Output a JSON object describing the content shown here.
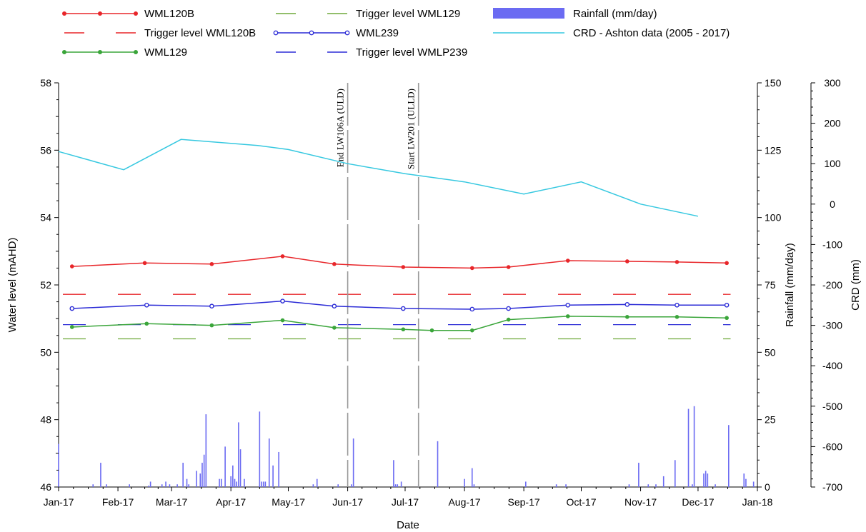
{
  "chart_data": {
    "type": "line",
    "x_axis": {
      "label": "Date",
      "tick_labels": [
        "Jan-17",
        "Feb-17",
        "Mar-17",
        "Apr-17",
        "May-17",
        "Jun-17",
        "Jul-17",
        "Aug-17",
        "Sep-17",
        "Oct-17",
        "Nov-17",
        "Dec-17",
        "Jan-18"
      ],
      "range": [
        "2017-01-01",
        "2018-01-01"
      ]
    },
    "y_axes": {
      "left": {
        "label": "Water level (mAHD)",
        "range": [
          46,
          58
        ],
        "ticks": [
          "46",
          "48",
          "50",
          "52",
          "54",
          "56",
          "58"
        ]
      },
      "right1": {
        "label": "Rainfall (mm/day)",
        "range": [
          0,
          150
        ],
        "ticks": [
          "0",
          "25",
          "50",
          "75",
          "100",
          "125",
          "150"
        ]
      },
      "right2": {
        "label": "CRD (mm)",
        "range": [
          -700,
          300
        ],
        "ticks": [
          "-700",
          "-600",
          "-500",
          "-400",
          "-300",
          "-200",
          "-100",
          "0",
          "100",
          "200",
          "300"
        ]
      }
    },
    "legend": {
      "placement": "top",
      "entries": [
        {
          "label": "WML120B",
          "color": "#e8262a",
          "style": "line-marker"
        },
        {
          "label": "Trigger level WML120B",
          "color": "#e8262a",
          "style": "dash"
        },
        {
          "label": "WML129",
          "color": "#3aa53a",
          "style": "line-marker"
        },
        {
          "label": "Trigger level WML129",
          "color": "#6ea83a",
          "style": "dash"
        },
        {
          "label": "WML239",
          "color": "#2b2bd6",
          "style": "line-marker-open"
        },
        {
          "label": "Trigger level WMLP239",
          "color": "#2b2bd6",
          "style": "dash"
        },
        {
          "label": "Rainfall (mm/day)",
          "color": "#6b6bf2",
          "style": "bar"
        },
        {
          "label": "CRD - Ashton data (2005 - 2017)",
          "color": "#36c8e0",
          "style": "line"
        }
      ]
    },
    "annotations": [
      {
        "label": "End LW106A (ULD)",
        "date": "2017-06-01",
        "style": "vertical-dashed"
      },
      {
        "label": "Start LW201 (ULLD)",
        "date": "2017-07-08",
        "style": "vertical-dashed"
      }
    ],
    "series": [
      {
        "name": "WML120B",
        "axis": "left",
        "color": "#e8262a",
        "marker": "filled-circle",
        "x": [
          "2017-01-08",
          "2017-02-15",
          "2017-03-22",
          "2017-04-28",
          "2017-05-25",
          "2017-06-30",
          "2017-08-05",
          "2017-08-24",
          "2017-09-24",
          "2017-10-25",
          "2017-11-20",
          "2017-12-16"
        ],
        "y": [
          52.55,
          52.65,
          52.62,
          52.85,
          52.62,
          52.53,
          52.5,
          52.53,
          52.72,
          52.7,
          52.68,
          52.65
        ]
      },
      {
        "name": "WML129",
        "axis": "left",
        "color": "#3aa53a",
        "marker": "filled-circle",
        "x": [
          "2017-01-08",
          "2017-02-16",
          "2017-03-22",
          "2017-04-28",
          "2017-05-25",
          "2017-06-30",
          "2017-07-15",
          "2017-08-05",
          "2017-08-24",
          "2017-09-24",
          "2017-10-25",
          "2017-11-20",
          "2017-12-16"
        ],
        "y": [
          50.75,
          50.85,
          50.8,
          50.95,
          50.73,
          50.68,
          50.65,
          50.65,
          50.97,
          51.07,
          51.05,
          51.05,
          51.02
        ]
      },
      {
        "name": "WML239",
        "axis": "left",
        "color": "#2b2bd6",
        "marker": "open-circle",
        "x": [
          "2017-01-08",
          "2017-02-16",
          "2017-03-22",
          "2017-04-28",
          "2017-05-25",
          "2017-06-30",
          "2017-08-05",
          "2017-08-24",
          "2017-09-24",
          "2017-10-25",
          "2017-11-20",
          "2017-12-16"
        ],
        "y": [
          51.3,
          51.4,
          51.37,
          51.52,
          51.37,
          51.3,
          51.28,
          51.3,
          51.4,
          51.42,
          51.4,
          51.4
        ]
      },
      {
        "name": "Trigger level WML120B",
        "axis": "left",
        "color": "#e8262a",
        "dashed": true,
        "x": [
          "2017-01-01",
          "2017-12-18"
        ],
        "y": [
          51.72,
          51.72
        ]
      },
      {
        "name": "Trigger level WML129",
        "axis": "left",
        "color": "#6ea83a",
        "dashed": true,
        "x": [
          "2017-01-01",
          "2017-12-18"
        ],
        "y": [
          50.4,
          50.4
        ]
      },
      {
        "name": "Trigger level WMLP239",
        "axis": "left",
        "color": "#2b2bd6",
        "dashed": true,
        "x": [
          "2017-01-01",
          "2017-12-18"
        ],
        "y": [
          50.82,
          50.82
        ]
      },
      {
        "name": "CRD - Ashton data (2005 - 2017)",
        "axis": "right2",
        "color": "#36c8e0",
        "marker": "none",
        "x": [
          "2017-01-01",
          "2017-02-04",
          "2017-03-06",
          "2017-04-15",
          "2017-05-01",
          "2017-06-01",
          "2017-07-01",
          "2017-08-01",
          "2017-09-01",
          "2017-10-01",
          "2017-11-01",
          "2017-12-01"
        ],
        "y": [
          130,
          85,
          160,
          145,
          135,
          100,
          75,
          55,
          25,
          55,
          0,
          -30
        ]
      },
      {
        "name": "Rainfall (mm/day)",
        "axis": "right1",
        "color": "#6b6bf2",
        "type": "bar",
        "x": [
          "2017-01-01",
          "2017-01-19",
          "2017-01-23",
          "2017-01-26",
          "2017-02-07",
          "2017-02-17",
          "2017-02-18",
          "2017-02-24",
          "2017-02-26",
          "2017-02-28",
          "2017-03-04",
          "2017-03-07",
          "2017-03-09",
          "2017-03-10",
          "2017-03-14",
          "2017-03-16",
          "2017-03-17",
          "2017-03-18",
          "2017-03-19",
          "2017-03-26",
          "2017-03-27",
          "2017-03-29",
          "2017-04-01",
          "2017-04-02",
          "2017-04-03",
          "2017-04-04",
          "2017-04-05",
          "2017-04-06",
          "2017-04-08",
          "2017-04-16",
          "2017-04-17",
          "2017-04-18",
          "2017-04-19",
          "2017-04-21",
          "2017-04-23",
          "2017-04-26",
          "2017-05-14",
          "2017-05-16",
          "2017-05-27",
          "2017-06-03",
          "2017-06-04",
          "2017-06-25",
          "2017-06-26",
          "2017-06-27",
          "2017-06-29",
          "2017-07-08",
          "2017-07-18",
          "2017-08-01",
          "2017-08-05",
          "2017-08-06",
          "2017-09-02",
          "2017-09-18",
          "2017-09-23",
          "2017-10-26",
          "2017-10-31",
          "2017-11-05",
          "2017-11-09",
          "2017-11-13",
          "2017-11-19",
          "2017-11-26",
          "2017-11-28",
          "2017-11-29",
          "2017-12-04",
          "2017-12-05",
          "2017-12-06",
          "2017-12-10",
          "2017-12-17",
          "2017-12-25",
          "2017-12-26",
          "2017-12-30"
        ],
        "y": [
          16,
          1,
          9,
          1,
          1,
          0.5,
          2,
          1,
          2,
          1,
          1,
          9,
          3,
          1,
          6,
          5,
          9,
          12,
          27,
          3,
          3,
          15,
          4,
          8,
          3,
          2,
          24,
          14,
          3,
          28,
          2,
          2,
          2,
          18,
          8,
          13,
          1,
          3,
          1,
          1,
          18,
          10,
          1,
          1,
          2,
          1,
          17,
          3,
          7,
          1,
          2,
          1,
          1,
          1,
          9,
          1,
          1,
          4,
          10,
          29,
          1,
          30,
          5,
          6,
          5,
          1,
          23,
          5,
          3,
          2
        ]
      }
    ]
  }
}
